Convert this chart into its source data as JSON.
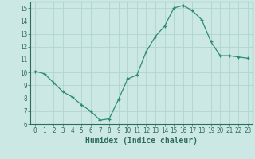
{
  "x": [
    0,
    1,
    2,
    3,
    4,
    5,
    6,
    7,
    8,
    9,
    10,
    11,
    12,
    13,
    14,
    15,
    16,
    17,
    18,
    19,
    20,
    21,
    22,
    23
  ],
  "y": [
    10.1,
    9.9,
    9.2,
    8.5,
    8.1,
    7.5,
    7.0,
    6.3,
    6.4,
    7.9,
    9.5,
    9.8,
    11.6,
    12.8,
    13.6,
    15.0,
    15.2,
    14.8,
    14.1,
    12.4,
    11.3,
    11.3,
    11.2,
    11.1
  ],
  "xlabel": "Humidex (Indice chaleur)",
  "line_color": "#2e8b74",
  "marker": "+",
  "bg_color": "#cce8e4",
  "grid_color": "#b0d4cf",
  "axis_color": "#2e6b60",
  "tick_color": "#2e6b60",
  "ylim": [
    6,
    15.5
  ],
  "xlim": [
    -0.5,
    23.5
  ],
  "yticks": [
    6,
    7,
    8,
    9,
    10,
    11,
    12,
    13,
    14,
    15
  ],
  "xticks": [
    0,
    1,
    2,
    3,
    4,
    5,
    6,
    7,
    8,
    9,
    10,
    11,
    12,
    13,
    14,
    15,
    16,
    17,
    18,
    19,
    20,
    21,
    22,
    23
  ]
}
